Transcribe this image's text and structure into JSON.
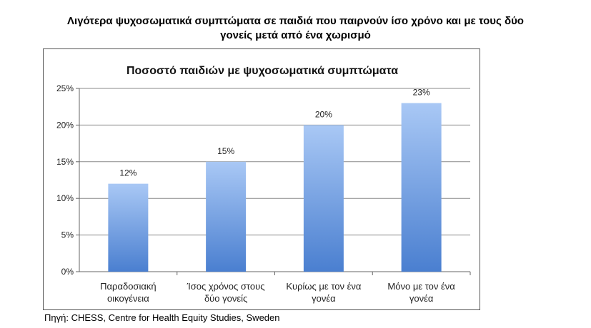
{
  "header": {
    "title_line1": "Λιγότερα ψυχοσωματικά συμπτώματα σε παιδιά που παιρνούν ίσο χρόνο και με τους δύο",
    "title_line2": "γονείς μετά από ένα χωρισμό"
  },
  "footer": {
    "source": "Πηγή: CHESS, Centre for Health Equity Studies, Sweden"
  },
  "chart_data": {
    "type": "bar",
    "title": "Ποσοστό παιδιών με ψυχοσωματικά συμπτώματα",
    "categories": [
      [
        "Παραδοσιακή",
        "οικογένεια"
      ],
      [
        "Ίσος χρόνος στους",
        "δύο γονείς"
      ],
      [
        "Κυρίως με τον ένα",
        "γονέα"
      ],
      [
        "Μόνο με τον ένα",
        "γονέα"
      ]
    ],
    "values": [
      12,
      15,
      20,
      23
    ],
    "data_labels": [
      "12%",
      "15%",
      "20%",
      "23%"
    ],
    "yticks": [
      0,
      5,
      10,
      15,
      20,
      25
    ],
    "ytick_labels": [
      "0%",
      "5%",
      "10%",
      "15%",
      "20%",
      "25%"
    ],
    "ylim": [
      0,
      25
    ],
    "xlabel": "",
    "ylabel": "",
    "grid": true,
    "colors": {
      "bar_top": "#a9c8f5",
      "bar_bottom": "#4a7fd0",
      "grid": "#8a8a8a"
    }
  }
}
